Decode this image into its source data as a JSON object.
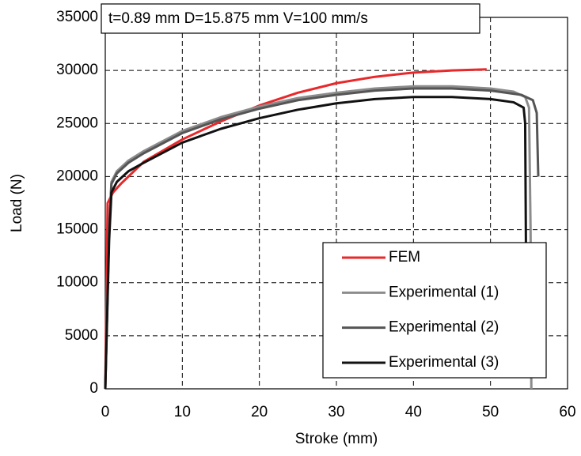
{
  "chart_data": {
    "type": "line",
    "annotation": "t=0.89 mm D=15.875 mm V=100 mm/s",
    "x_label": "Stroke (mm)",
    "y_label": "Load (N)",
    "xlim": [
      0,
      60
    ],
    "xticks": [
      0,
      10,
      20,
      30,
      40,
      50,
      60
    ],
    "ylim": [
      0,
      35000
    ],
    "yticks": [
      0,
      5000,
      10000,
      15000,
      20000,
      25000,
      30000,
      35000
    ],
    "grid": true,
    "legend": "lower right",
    "series": [
      {
        "name": "FEM",
        "color": "#e8282a",
        "x": [
          0,
          0.3,
          1,
          2,
          5,
          10,
          15,
          20,
          25,
          30,
          35,
          40,
          45,
          49.5
        ],
        "values": [
          0,
          17500,
          18500,
          19300,
          21400,
          23500,
          25200,
          26700,
          27900,
          28800,
          29400,
          29800,
          30000,
          30100
        ]
      },
      {
        "name": "Experimental (1)",
        "color": "#8c8c8c",
        "x": [
          0,
          0.5,
          0.8,
          1.5,
          3,
          5,
          10,
          15,
          20,
          25,
          30,
          35,
          40,
          45,
          50,
          53,
          54.5,
          55,
          55.2,
          55.3
        ],
        "values": [
          0,
          15000,
          19500,
          20500,
          21500,
          22400,
          24300,
          25600,
          26600,
          27400,
          27900,
          28300,
          28500,
          28500,
          28300,
          28000,
          27500,
          26500,
          15000,
          0
        ]
      },
      {
        "name": "Experimental (2)",
        "color": "#555555",
        "x": [
          0,
          0.5,
          0.8,
          1.5,
          3,
          5,
          10,
          15,
          20,
          25,
          30,
          35,
          40,
          45,
          50,
          54,
          55.5,
          56,
          56.2
        ],
        "values": [
          0,
          15000,
          19300,
          20300,
          21300,
          22200,
          24100,
          25400,
          26400,
          27200,
          27700,
          28100,
          28300,
          28300,
          28100,
          27700,
          27200,
          26000,
          20000
        ]
      },
      {
        "name": "Experimental (3)",
        "color": "#111111",
        "x": [
          0,
          0.5,
          0.8,
          1.5,
          3,
          5,
          10,
          15,
          20,
          25,
          30,
          35,
          40,
          45,
          50,
          53,
          54.3,
          54.5,
          54.6
        ],
        "values": [
          0,
          14000,
          18500,
          19500,
          20500,
          21300,
          23200,
          24500,
          25500,
          26300,
          26900,
          27300,
          27500,
          27500,
          27300,
          27000,
          26500,
          25000,
          13500
        ]
      }
    ]
  }
}
